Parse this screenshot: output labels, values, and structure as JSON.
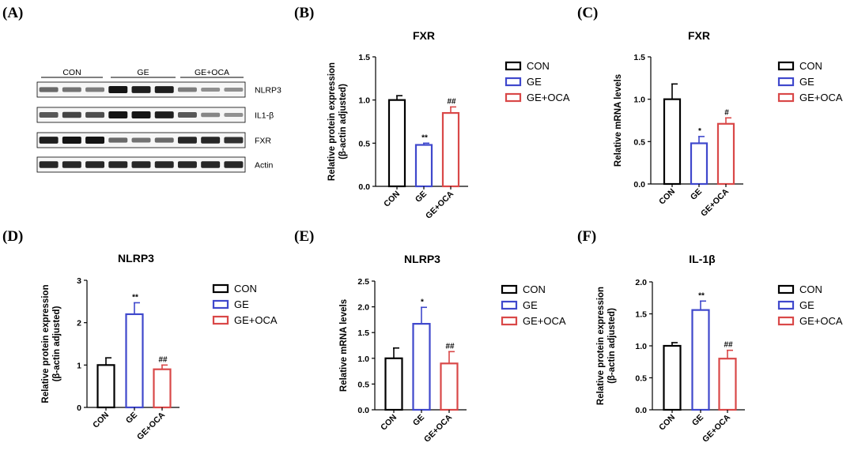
{
  "panel_labels": [
    "(A)",
    "(B)",
    "(C)",
    "(D)",
    "(E)",
    "(F)"
  ],
  "colors": {
    "CON": "#000000",
    "GE": "#3f48cc",
    "GE+OCA": "#d94848"
  },
  "western_blot": {
    "groups": [
      "CON",
      "GE",
      "GE+OCA"
    ],
    "bands": [
      "NLRP3",
      "IL1-β",
      "FXR",
      "Actin"
    ],
    "intensities": {
      "NLRP3": [
        0.55,
        0.5,
        0.45,
        1.0,
        0.95,
        0.95,
        0.45,
        0.35,
        0.35
      ],
      "IL1-β": [
        0.65,
        0.75,
        0.7,
        1.0,
        1.0,
        0.95,
        0.65,
        0.4,
        0.35
      ],
      "FXR": [
        0.95,
        1.0,
        1.0,
        0.55,
        0.5,
        0.55,
        0.9,
        0.9,
        0.85
      ],
      "Actin": [
        0.9,
        0.9,
        0.9,
        0.9,
        0.9,
        0.9,
        0.9,
        0.9,
        0.9
      ]
    }
  },
  "chart_data": [
    {
      "type": "bar",
      "panel": "(B)",
      "title": "FXR",
      "ylabel": [
        "Relative protein expression",
        "(β-actin adjusted)"
      ],
      "xlabel": "",
      "categories": [
        "CON",
        "GE",
        "GE+OCA"
      ],
      "values": [
        1.0,
        0.48,
        0.85
      ],
      "errors": [
        0.05,
        0.02,
        0.07
      ],
      "significance": [
        "",
        "**",
        "##"
      ],
      "ylim": [
        0,
        1.5
      ],
      "yticks": [
        "0.0",
        "0.5",
        "1.0",
        "1.5"
      ],
      "legend": [
        "CON",
        "GE",
        "GE+OCA"
      ],
      "legend_position": "right"
    },
    {
      "type": "bar",
      "panel": "(C)",
      "title": "FXR",
      "ylabel": [
        "Relative mRNA levels"
      ],
      "xlabel": "",
      "categories": [
        "CON",
        "GE",
        "GE+OCA"
      ],
      "values": [
        1.0,
        0.48,
        0.71
      ],
      "errors": [
        0.18,
        0.08,
        0.07
      ],
      "significance": [
        "",
        "*",
        "#"
      ],
      "ylim": [
        0,
        1.5
      ],
      "yticks": [
        "0.0",
        "0.5",
        "1.0",
        "1.5"
      ],
      "legend": [
        "CON",
        "GE",
        "GE+OCA"
      ],
      "legend_position": "right"
    },
    {
      "type": "bar",
      "panel": "(D)",
      "title": "NLRP3",
      "ylabel": [
        "Relative protein expression",
        "(β-actin adjusted)"
      ],
      "xlabel": "",
      "categories": [
        "CON",
        "GE",
        "GE+OCA"
      ],
      "values": [
        1.0,
        2.2,
        0.9
      ],
      "errors": [
        0.17,
        0.27,
        0.1
      ],
      "significance": [
        "",
        "**",
        "##"
      ],
      "ylim": [
        0,
        3
      ],
      "yticks": [
        "0",
        "1",
        "2",
        "3"
      ],
      "legend": [
        "CON",
        "GE",
        "GE+OCA"
      ],
      "legend_position": "right"
    },
    {
      "type": "bar",
      "panel": "(E)",
      "title": "NLRP3",
      "ylabel": [
        "Relative mRNA levels"
      ],
      "xlabel": "",
      "categories": [
        "CON",
        "GE",
        "GE+OCA"
      ],
      "values": [
        1.0,
        1.67,
        0.9
      ],
      "errors": [
        0.2,
        0.32,
        0.23
      ],
      "significance": [
        "",
        "*",
        "##"
      ],
      "ylim": [
        0,
        2.5
      ],
      "yticks": [
        "0.0",
        "0.5",
        "1.0",
        "1.5",
        "2.0",
        "2.5"
      ],
      "legend": [
        "CON",
        "GE",
        "GE+OCA"
      ],
      "legend_position": "right"
    },
    {
      "type": "bar",
      "panel": "(F)",
      "title": "IL-1β",
      "ylabel": [
        "Relative protein expression",
        "(β-actin adjusted)"
      ],
      "xlabel": "",
      "categories": [
        "CON",
        "GE",
        "GE+OCA"
      ],
      "values": [
        1.0,
        1.56,
        0.8
      ],
      "errors": [
        0.05,
        0.14,
        0.13
      ],
      "significance": [
        "",
        "**",
        "##"
      ],
      "ylim": [
        0,
        2.0
      ],
      "yticks": [
        "0.0",
        "0.5",
        "1.0",
        "1.5",
        "2.0"
      ],
      "legend": [
        "CON",
        "GE",
        "GE+OCA"
      ],
      "legend_position": "right"
    }
  ]
}
